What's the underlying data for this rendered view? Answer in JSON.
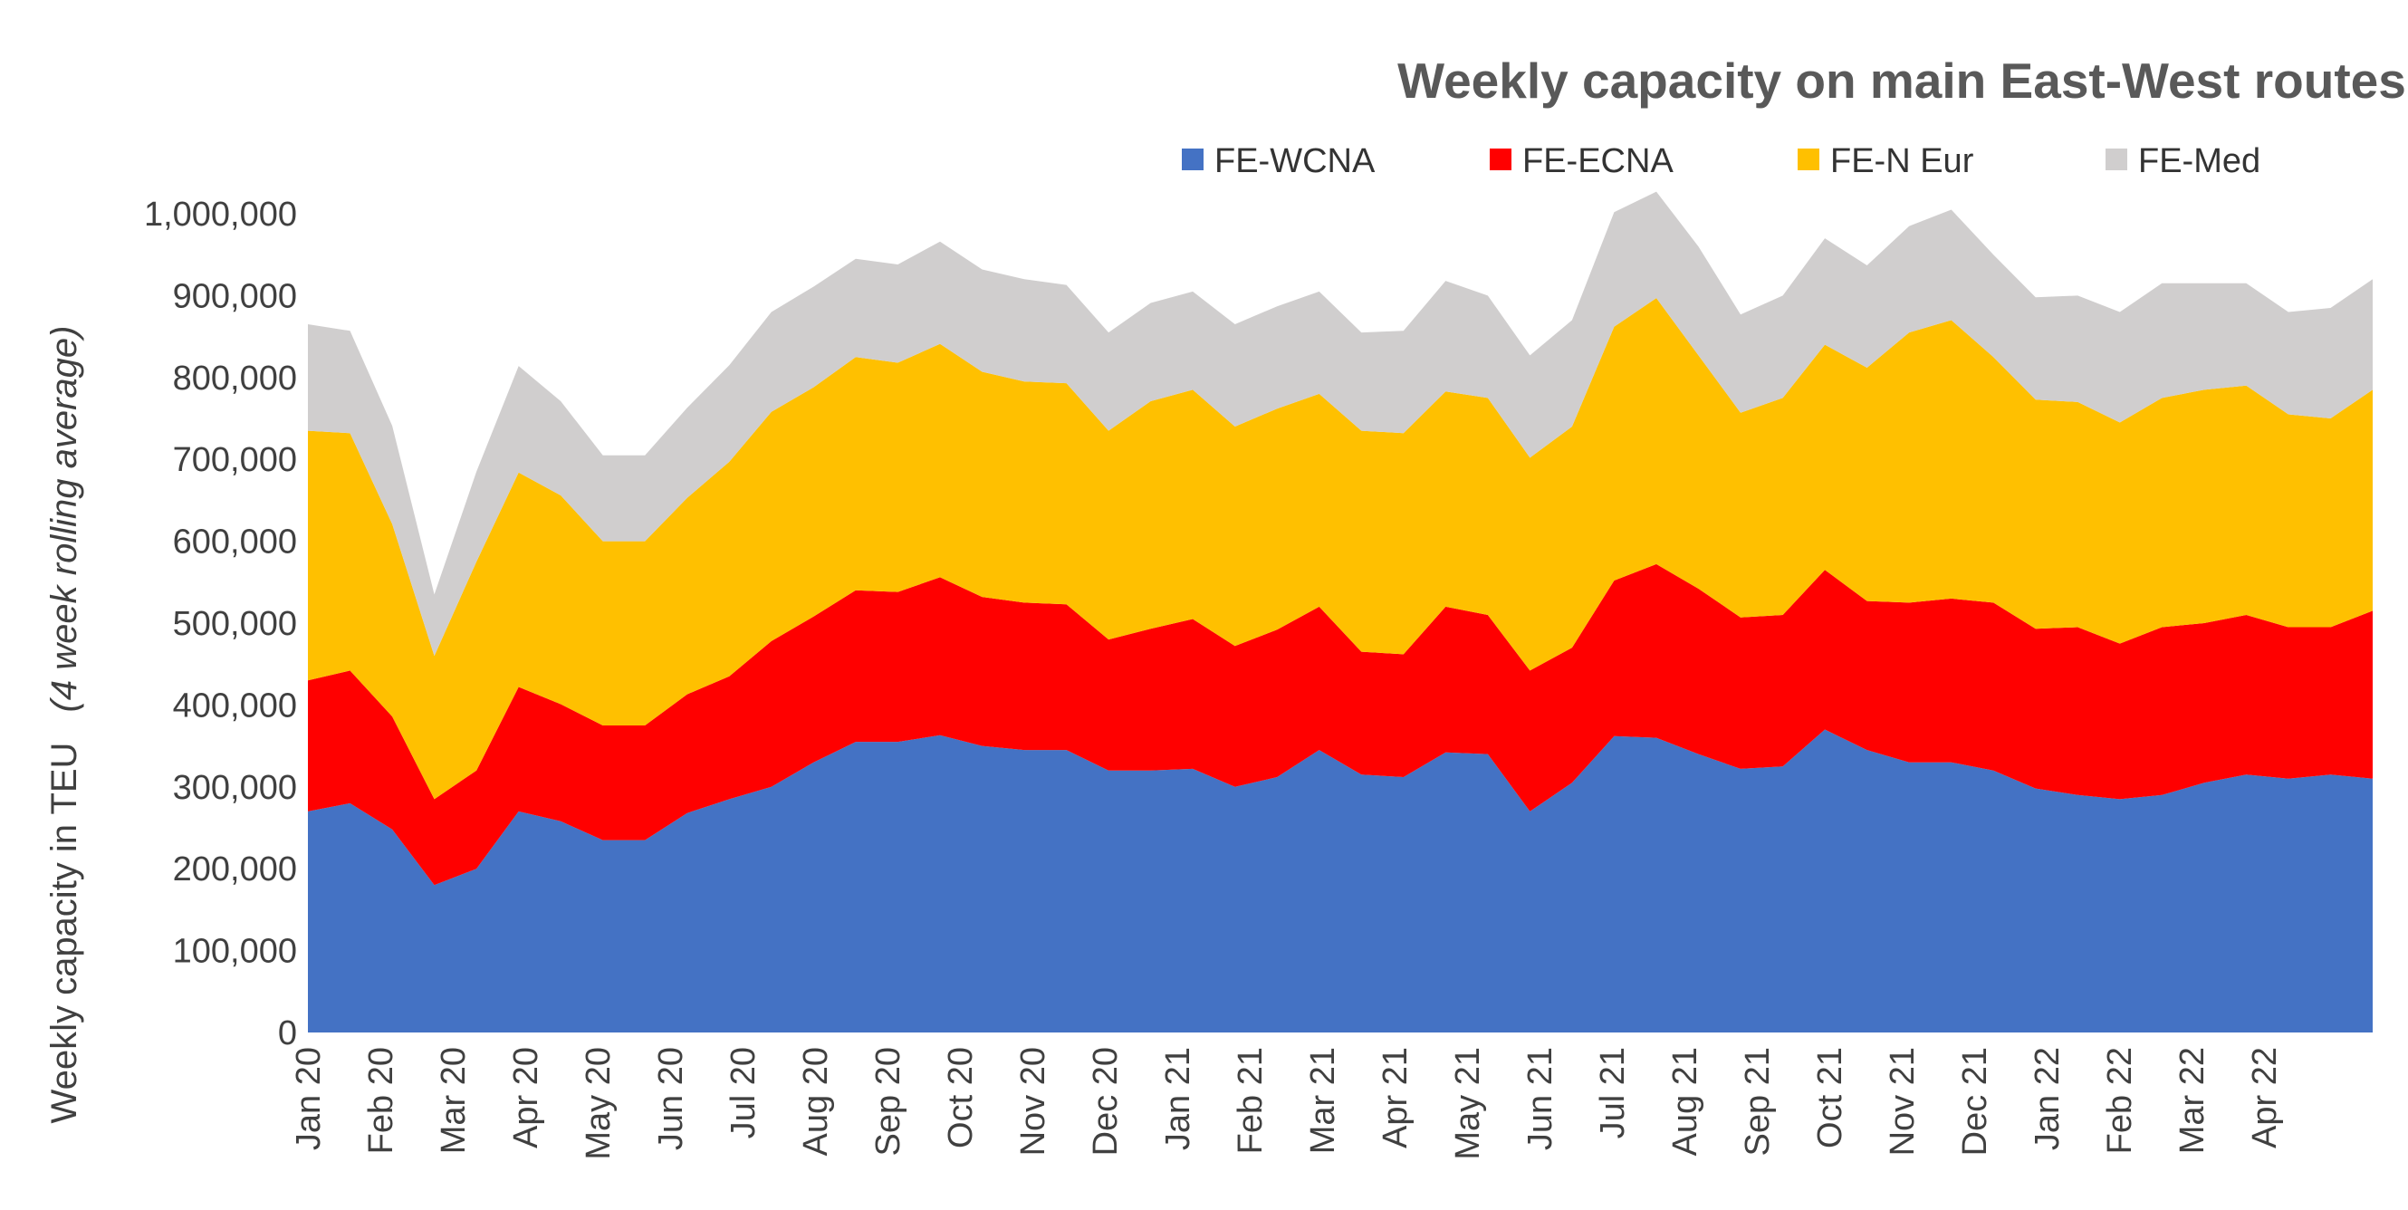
{
  "chart_data": {
    "type": "area",
    "stacked": true,
    "title": "Weekly capacity on main East-West routes",
    "ylabel": "Weekly capacity in TEU",
    "ylabel_note": "(4 week rolling average)",
    "ylim": [
      0,
      1000000
    ],
    "yticks": [
      "0",
      "100,000",
      "200,000",
      "300,000",
      "400,000",
      "500,000",
      "600,000",
      "700,000",
      "800,000",
      "900,000",
      "1,000,000"
    ],
    "x_tick_labels": [
      "Jan 20",
      "Feb 20",
      "Mar 20",
      "Apr 20",
      "May 20",
      "Jun 20",
      "Jul 20",
      "Aug 20",
      "Sep 20",
      "Oct 20",
      "Nov 20",
      "Dec 20",
      "Jan 21",
      "Feb 21",
      "Mar 21",
      "Apr 21",
      "May 21",
      "Jun 21",
      "Jul 21",
      "Aug 21",
      "Sep 21",
      "Oct 21",
      "Nov 21",
      "Dec 21",
      "Jan 22",
      "Feb 22",
      "Mar 22",
      "Apr 22"
    ],
    "grid": false,
    "legend_position": "top",
    "series": [
      {
        "name": "FE-WCNA",
        "color": "#4472C4",
        "values": [
          270000,
          280000,
          248000,
          180000,
          200000,
          270000,
          258000,
          235000,
          235000,
          268000,
          285000,
          300000,
          330000,
          355000,
          355000,
          363000,
          350000,
          345000,
          345000,
          320000,
          320000,
          322000,
          300000,
          312000,
          345000,
          315000,
          312000,
          342000,
          340000,
          270000,
          305000,
          362000,
          360000,
          340000,
          322000,
          325000,
          370000,
          345000,
          330000,
          330000,
          320000,
          298000,
          290000,
          285000,
          290000,
          305000,
          315000,
          310000,
          315000,
          310000
        ]
      },
      {
        "name": "FE-ECNA",
        "color": "#FF0000",
        "values": [
          160000,
          162000,
          138000,
          105000,
          120000,
          152000,
          143000,
          140000,
          140000,
          145000,
          150000,
          178000,
          178000,
          185000,
          183000,
          193000,
          182000,
          180000,
          178000,
          160000,
          173000,
          183000,
          172000,
          180000,
          175000,
          150000,
          150000,
          178000,
          170000,
          172000,
          165000,
          190000,
          212000,
          202000,
          185000,
          185000,
          195000,
          182000,
          195000,
          200000,
          205000,
          195000,
          205000,
          190000,
          205000,
          195000,
          195000,
          185000,
          180000,
          205000
        ]
      },
      {
        "name": "FE-N Eur",
        "color": "#FFC000",
        "values": [
          305000,
          290000,
          235000,
          175000,
          255000,
          262000,
          255000,
          225000,
          225000,
          240000,
          262000,
          280000,
          280000,
          285000,
          280000,
          285000,
          275000,
          270000,
          270000,
          255000,
          278000,
          280000,
          268000,
          270000,
          260000,
          270000,
          270000,
          263000,
          265000,
          260000,
          270000,
          310000,
          325000,
          285000,
          250000,
          265000,
          275000,
          285000,
          330000,
          340000,
          300000,
          280000,
          275000,
          270000,
          280000,
          285000,
          280000,
          260000,
          255000,
          270000
        ]
      },
      {
        "name": "FE-Med",
        "color": "#D0CECE",
        "values": [
          130000,
          125000,
          120000,
          75000,
          110000,
          130000,
          115000,
          105000,
          105000,
          110000,
          118000,
          122000,
          123000,
          120000,
          120000,
          125000,
          125000,
          125000,
          120000,
          120000,
          120000,
          120000,
          125000,
          125000,
          125000,
          120000,
          125000,
          135000,
          125000,
          125000,
          130000,
          140000,
          130000,
          133000,
          120000,
          125000,
          130000,
          125000,
          130000,
          135000,
          125000,
          125000,
          130000,
          135000,
          140000,
          130000,
          125000,
          125000,
          135000,
          135000
        ]
      }
    ]
  }
}
